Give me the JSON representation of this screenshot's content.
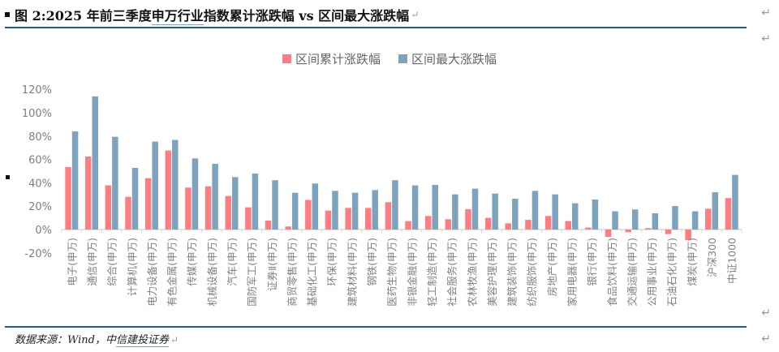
{
  "header": {
    "title_prefix": "图 2:2025 年前三季度",
    "title_underlined": "申万行业",
    "title_suffix": "指数累计涨跌幅 vs 区间最大涨跌幅",
    "return_mark": "↵",
    "edge_mark": "↵"
  },
  "footer": {
    "source_prefix": "数据来源：Wind，中",
    "source_underlined": "信建投证券",
    "return_mark": "↵"
  },
  "colors": {
    "series1": "#ff7c80",
    "series2": "#7ea3bf",
    "rule": "#1f5d8c",
    "axis": "#d9d9d9",
    "tick_text": "#7f7f7f"
  },
  "chart_data": {
    "type": "bar",
    "title": "",
    "xlabel": "",
    "ylabel": "",
    "ylim": [
      -0.2,
      1.2
    ],
    "yticks": [
      "-20%",
      "0%",
      "20%",
      "40%",
      "60%",
      "80%",
      "100%",
      "120%"
    ],
    "grid": false,
    "legend_position": "top",
    "categories": [
      "电子(申万)",
      "通信(申万)",
      "综合(申万)",
      "计算机(申万)",
      "电力设备(申万)",
      "有色金属(申万)",
      "传媒(申万)",
      "机械设备(申万)",
      "汽车(申万)",
      "国防军工(申万)",
      "证券Ⅱ(申万)",
      "商贸零售(申万)",
      "基础化工(申万)",
      "环保(申万)",
      "建筑材料(申万)",
      "钢铁(申万)",
      "医药生物(申万)",
      "非银金融(申万)",
      "轻工制造(申万)",
      "社会服务(申万)",
      "农林牧渔(申万)",
      "美容护理(申万)",
      "建筑装饰(申万)",
      "纺织服饰(申万)",
      "房地产(申万)",
      "家用电器(申万)",
      "银行(申万)",
      "食品饮料(申万)",
      "交通运输(申万)",
      "公用事业(申万)",
      "石油石化(申万)",
      "煤炭(申万)",
      "沪深300",
      "中证1000"
    ],
    "series": [
      {
        "name": "区间累计涨跌幅",
        "values": [
          53.5,
          62.5,
          37.8,
          28.0,
          44.0,
          67.6,
          35.9,
          37.0,
          28.7,
          19.0,
          7.6,
          2.6,
          25.3,
          16.2,
          18.5,
          18.5,
          23.4,
          7.2,
          11.6,
          8.8,
          17.4,
          10.0,
          5.3,
          8.3,
          11.6,
          7.2,
          1.7,
          -6.3,
          -2.3,
          1.2,
          -3.9,
          -9.0,
          17.8,
          26.9
        ]
      },
      {
        "name": "区间最大涨跌幅",
        "values": [
          84.0,
          114.0,
          79.4,
          52.8,
          75.3,
          76.7,
          60.9,
          56.3,
          44.9,
          47.9,
          42.2,
          31.5,
          39.4,
          33.1,
          31.5,
          33.8,
          42.2,
          37.8,
          38.2,
          30.1,
          35.0,
          30.8,
          26.4,
          33.1,
          30.1,
          22.5,
          25.7,
          15.6,
          17.2,
          13.9,
          20.1,
          15.6,
          31.9,
          46.8
        ]
      }
    ]
  }
}
